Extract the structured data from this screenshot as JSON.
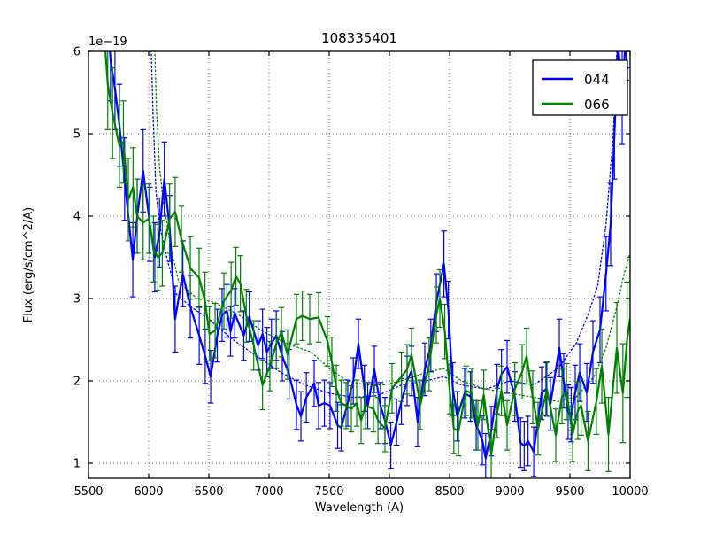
{
  "figure": {
    "title": "108335401",
    "xlabel": "Wavelength (A)",
    "ylabel": "Flux (erg/s/cm^2/A)",
    "offset_text": "1e−19"
  },
  "legend": {
    "position": "upper right",
    "entries": [
      {
        "label": "044",
        "color": "#0000ff"
      },
      {
        "label": "066",
        "color": "#008000"
      }
    ]
  },
  "chart_data": {
    "type": "line",
    "title": "108335401",
    "xlabel": "Wavelength (A)",
    "ylabel": "Flux (erg/s/cm^2/A)",
    "y_offset_label": "1e−19",
    "y_unit_scale": "1e-19 erg/s/cm^2/A",
    "xlim": [
      5500,
      10000
    ],
    "ylim": [
      0.817,
      6.0
    ],
    "x_ticks": [
      5500,
      6000,
      6500,
      7000,
      7500,
      8000,
      8500,
      9000,
      9500,
      10000
    ],
    "y_ticks": [
      1,
      2,
      3,
      4,
      5,
      6
    ],
    "grid": true,
    "legend_position": "upper right",
    "series": [
      {
        "name": "044",
        "color": "#0000ff",
        "style": "solid",
        "linewidth": 2,
        "has_errorbars": true,
        "points": [
          [
            5655,
            6.55,
            0.5
          ],
          [
            5683,
            5.9,
            0.5
          ],
          [
            5720,
            5.55,
            0.5
          ],
          [
            5757,
            5.1,
            0.5
          ],
          [
            5800,
            4.45,
            0.5
          ],
          [
            5868,
            3.47,
            0.45
          ],
          [
            5905,
            4.0,
            0.45
          ],
          [
            5954,
            4.55,
            0.5
          ],
          [
            6010,
            3.9,
            0.45
          ],
          [
            6051,
            3.5,
            0.42
          ],
          [
            6090,
            3.8,
            0.42
          ],
          [
            6130,
            4.45,
            0.45
          ],
          [
            6175,
            3.85,
            0.4
          ],
          [
            6220,
            2.75,
            0.4
          ],
          [
            6284,
            3.3,
            0.4
          ],
          [
            6346,
            2.9,
            0.38
          ],
          [
            6420,
            2.55,
            0.35
          ],
          [
            6470,
            2.3,
            0.33
          ],
          [
            6515,
            2.05,
            0.32
          ],
          [
            6570,
            2.55,
            0.32
          ],
          [
            6610,
            2.8,
            0.32
          ],
          [
            6650,
            2.85,
            0.32
          ],
          [
            6680,
            2.6,
            0.3
          ],
          [
            6715,
            2.82,
            0.3
          ],
          [
            6790,
            2.55,
            0.3
          ],
          [
            6836,
            2.78,
            0.3
          ],
          [
            6909,
            2.43,
            0.3
          ],
          [
            6946,
            2.57,
            0.3
          ],
          [
            6983,
            2.35,
            0.3
          ],
          [
            7020,
            2.45,
            0.3
          ],
          [
            7060,
            2.55,
            0.3
          ],
          [
            7110,
            2.3,
            0.3
          ],
          [
            7167,
            2.08,
            0.3
          ],
          [
            7228,
            1.71,
            0.3
          ],
          [
            7265,
            1.57,
            0.3
          ],
          [
            7310,
            1.8,
            0.3
          ],
          [
            7375,
            1.97,
            0.28
          ],
          [
            7412,
            1.7,
            0.28
          ],
          [
            7460,
            1.73,
            0.28
          ],
          [
            7507,
            1.7,
            0.28
          ],
          [
            7570,
            1.46,
            0.28
          ],
          [
            7600,
            1.43,
            0.28
          ],
          [
            7654,
            1.73,
            0.28
          ],
          [
            7700,
            2.0,
            0.28
          ],
          [
            7743,
            2.45,
            0.3
          ],
          [
            7792,
            1.91,
            0.28
          ],
          [
            7820,
            1.7,
            0.28
          ],
          [
            7875,
            2.14,
            0.28
          ],
          [
            7926,
            1.7,
            0.28
          ],
          [
            7963,
            1.52,
            0.28
          ],
          [
            8012,
            1.22,
            0.28
          ],
          [
            8060,
            1.5,
            0.28
          ],
          [
            8100,
            1.75,
            0.28
          ],
          [
            8147,
            2.0,
            0.3
          ],
          [
            8184,
            2.12,
            0.3
          ],
          [
            8235,
            1.5,
            0.3
          ],
          [
            8294,
            2.14,
            0.32
          ],
          [
            8344,
            2.43,
            0.32
          ],
          [
            8390,
            2.95,
            0.35
          ],
          [
            8453,
            3.42,
            0.4
          ],
          [
            8490,
            2.86,
            0.35
          ],
          [
            8527,
            1.9,
            0.32
          ],
          [
            8564,
            1.57,
            0.3
          ],
          [
            8625,
            1.85,
            0.3
          ],
          [
            8674,
            1.81,
            0.3
          ],
          [
            8721,
            1.46,
            0.3
          ],
          [
            8772,
            1.28,
            0.3
          ],
          [
            8800,
            1.06,
            0.3
          ],
          [
            8846,
            1.39,
            0.3
          ],
          [
            8895,
            1.9,
            0.3
          ],
          [
            8931,
            2.08,
            0.3
          ],
          [
            8978,
            2.17,
            0.32
          ],
          [
            9042,
            1.81,
            0.3
          ],
          [
            9090,
            1.25,
            0.3
          ],
          [
            9120,
            1.21,
            0.3
          ],
          [
            9152,
            1.27,
            0.3
          ],
          [
            9199,
            1.14,
            0.3
          ],
          [
            9265,
            1.85,
            0.32
          ],
          [
            9301,
            1.9,
            0.32
          ],
          [
            9338,
            1.72,
            0.32
          ],
          [
            9412,
            2.4,
            0.35
          ],
          [
            9448,
            2.0,
            0.33
          ],
          [
            9485,
            1.62,
            0.33
          ],
          [
            9510,
            1.59,
            0.33
          ],
          [
            9544,
            1.86,
            0.33
          ],
          [
            9581,
            2.1,
            0.35
          ],
          [
            9640,
            1.86,
            0.35
          ],
          [
            9691,
            2.35,
            0.38
          ],
          [
            9750,
            2.62,
            0.4
          ],
          [
            9800,
            3.3,
            0.45
          ],
          [
            9838,
            3.9,
            0.5
          ],
          [
            9870,
            5.0,
            0.55
          ],
          [
            9900,
            6.1,
            0.6
          ],
          [
            9934,
            5.47,
            0.6
          ],
          [
            9968,
            6.25,
            0.6
          ],
          [
            10000,
            6.4,
            0.6
          ]
        ]
      },
      {
        "name": "066",
        "color": "#008000",
        "style": "solid",
        "linewidth": 2,
        "has_errorbars": true,
        "points": [
          [
            5612,
            6.6,
            0.6
          ],
          [
            5660,
            5.6,
            0.55
          ],
          [
            5700,
            5.25,
            0.55
          ],
          [
            5757,
            4.85,
            0.5
          ],
          [
            5790,
            4.9,
            0.5
          ],
          [
            5831,
            4.2,
            0.5
          ],
          [
            5870,
            4.35,
            0.48
          ],
          [
            5904,
            4.0,
            0.45
          ],
          [
            5954,
            3.92,
            0.45
          ],
          [
            6002,
            3.97,
            0.42
          ],
          [
            6040,
            3.6,
            0.4
          ],
          [
            6076,
            3.5,
            0.4
          ],
          [
            6113,
            3.55,
            0.4
          ],
          [
            6174,
            3.97,
            0.42
          ],
          [
            6220,
            4.05,
            0.42
          ],
          [
            6272,
            3.72,
            0.4
          ],
          [
            6346,
            3.37,
            0.38
          ],
          [
            6419,
            3.25,
            0.36
          ],
          [
            6468,
            2.97,
            0.35
          ],
          [
            6505,
            2.57,
            0.33
          ],
          [
            6552,
            2.61,
            0.33
          ],
          [
            6625,
            2.97,
            0.34
          ],
          [
            6685,
            3.1,
            0.34
          ],
          [
            6725,
            3.27,
            0.35
          ],
          [
            6762,
            3.18,
            0.34
          ],
          [
            6811,
            2.79,
            0.32
          ],
          [
            6873,
            2.43,
            0.3
          ],
          [
            6946,
            1.95,
            0.3
          ],
          [
            7007,
            2.18,
            0.3
          ],
          [
            7060,
            2.45,
            0.3
          ],
          [
            7103,
            2.59,
            0.3
          ],
          [
            7154,
            2.32,
            0.3
          ],
          [
            7228,
            2.75,
            0.3
          ],
          [
            7277,
            2.79,
            0.3
          ],
          [
            7338,
            2.75,
            0.3
          ],
          [
            7412,
            2.77,
            0.3
          ],
          [
            7485,
            2.48,
            0.3
          ],
          [
            7522,
            2.23,
            0.3
          ],
          [
            7559,
            1.91,
            0.28
          ],
          [
            7600,
            1.73,
            0.28
          ],
          [
            7640,
            1.7,
            0.28
          ],
          [
            7684,
            1.66,
            0.28
          ],
          [
            7728,
            1.73,
            0.28
          ],
          [
            7765,
            1.52,
            0.28
          ],
          [
            7802,
            1.7,
            0.28
          ],
          [
            7868,
            1.66,
            0.28
          ],
          [
            7905,
            1.52,
            0.28
          ],
          [
            7963,
            1.42,
            0.28
          ],
          [
            8022,
            1.91,
            0.3
          ],
          [
            8100,
            2.05,
            0.3
          ],
          [
            8147,
            2.14,
            0.3
          ],
          [
            8184,
            2.32,
            0.32
          ],
          [
            8257,
            1.71,
            0.3
          ],
          [
            8330,
            2.2,
            0.32
          ],
          [
            8390,
            2.8,
            0.34
          ],
          [
            8419,
            3.0,
            0.35
          ],
          [
            8460,
            2.6,
            0.33
          ],
          [
            8500,
            1.9,
            0.3
          ],
          [
            8535,
            1.42,
            0.3
          ],
          [
            8574,
            1.39,
            0.3
          ],
          [
            8637,
            1.88,
            0.3
          ],
          [
            8684,
            1.85,
            0.3
          ],
          [
            8735,
            1.46,
            0.3
          ],
          [
            8784,
            1.83,
            0.3
          ],
          [
            8846,
            1.11,
            0.3
          ],
          [
            8895,
            1.61,
            0.3
          ],
          [
            8931,
            1.88,
            0.3
          ],
          [
            8978,
            1.46,
            0.3
          ],
          [
            9042,
            1.9,
            0.32
          ],
          [
            9103,
            2.11,
            0.33
          ],
          [
            9140,
            2.3,
            0.34
          ],
          [
            9191,
            1.8,
            0.32
          ],
          [
            9235,
            1.42,
            0.32
          ],
          [
            9309,
            1.9,
            0.33
          ],
          [
            9382,
            1.34,
            0.32
          ],
          [
            9434,
            1.81,
            0.33
          ],
          [
            9471,
            1.87,
            0.34
          ],
          [
            9522,
            1.35,
            0.33
          ],
          [
            9566,
            1.64,
            0.35
          ],
          [
            9593,
            1.7,
            0.36
          ],
          [
            9650,
            1.27,
            0.36
          ],
          [
            9720,
            1.75,
            0.4
          ],
          [
            9765,
            2.18,
            0.45
          ],
          [
            9820,
            1.35,
            0.45
          ],
          [
            9890,
            2.4,
            0.55
          ],
          [
            9940,
            1.85,
            0.6
          ],
          [
            9975,
            2.5,
            0.7
          ],
          [
            10000,
            2.75,
            0.75
          ]
        ]
      },
      {
        "name": "044-dotted",
        "color": "#0000ff",
        "style": "dotted",
        "linewidth": 1,
        "has_errorbars": false,
        "points": [
          [
            6018,
            6.2
          ],
          [
            6035,
            5.3
          ],
          [
            6060,
            4.3
          ],
          [
            6090,
            3.9
          ],
          [
            6150,
            3.5
          ],
          [
            6230,
            3.05
          ],
          [
            6350,
            2.9
          ],
          [
            6500,
            2.75
          ],
          [
            6700,
            2.5
          ],
          [
            6900,
            2.3
          ],
          [
            7100,
            2.1
          ],
          [
            7300,
            1.95
          ],
          [
            7500,
            1.85
          ],
          [
            7700,
            1.8
          ],
          [
            7900,
            1.82
          ],
          [
            8100,
            1.95
          ],
          [
            8300,
            2.0
          ],
          [
            8450,
            2.05
          ],
          [
            8600,
            1.95
          ],
          [
            8800,
            1.9
          ],
          [
            9000,
            2.0
          ],
          [
            9200,
            1.95
          ],
          [
            9400,
            2.15
          ],
          [
            9550,
            2.45
          ],
          [
            9650,
            2.8
          ],
          [
            9730,
            3.15
          ],
          [
            9800,
            3.9
          ],
          [
            9860,
            5.0
          ],
          [
            9895,
            6.2
          ]
        ]
      },
      {
        "name": "066-dotted",
        "color": "#008000",
        "style": "dotted",
        "linewidth": 1,
        "has_errorbars": false,
        "points": [
          [
            6048,
            6.2
          ],
          [
            6065,
            5.3
          ],
          [
            6090,
            4.6
          ],
          [
            6120,
            4.2
          ],
          [
            6180,
            3.65
          ],
          [
            6250,
            3.2
          ],
          [
            6400,
            3.0
          ],
          [
            6550,
            2.95
          ],
          [
            6750,
            2.8
          ],
          [
            6950,
            2.6
          ],
          [
            7150,
            2.45
          ],
          [
            7350,
            2.35
          ],
          [
            7500,
            2.15
          ],
          [
            7650,
            2.0
          ],
          [
            7800,
            1.95
          ],
          [
            7950,
            1.95
          ],
          [
            8100,
            2.0
          ],
          [
            8300,
            2.1
          ],
          [
            8450,
            2.15
          ],
          [
            8600,
            2.0
          ],
          [
            8800,
            1.9
          ],
          [
            9000,
            1.85
          ],
          [
            9200,
            1.8
          ],
          [
            9400,
            1.75
          ],
          [
            9550,
            1.8
          ],
          [
            9700,
            2.05
          ],
          [
            9800,
            2.4
          ],
          [
            9890,
            2.9
          ],
          [
            9950,
            3.3
          ],
          [
            10000,
            3.55
          ]
        ]
      }
    ]
  }
}
